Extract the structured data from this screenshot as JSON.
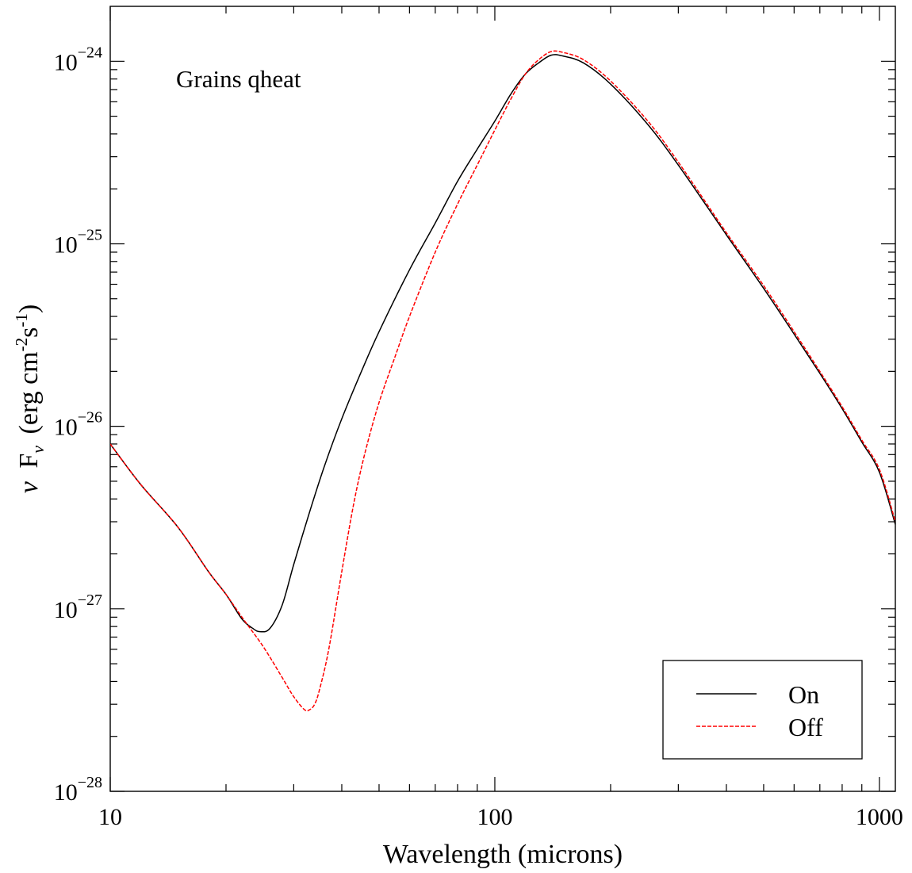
{
  "chart_data": {
    "type": "line",
    "annotation": "Grains qheat",
    "xlabel": "Wavelength (microns)",
    "ylabel": {
      "nu": "ν",
      "F": "F",
      "sub": "ν",
      "open": "(erg cm",
      "exp1": "-2",
      "mid": "s",
      "exp2": "-1",
      "close": ")"
    },
    "x_scale": "log",
    "y_scale": "log",
    "xlim": [
      10,
      1100
    ],
    "ylim": [
      1e-28,
      2e-24
    ],
    "x_ticks": [
      {
        "value": 10,
        "label": "10"
      },
      {
        "value": 100,
        "label": "100"
      },
      {
        "value": 1000,
        "label": "1000"
      }
    ],
    "y_ticks": [
      {
        "value": 1e-28,
        "base": "10",
        "exp": "−28"
      },
      {
        "value": 1e-27,
        "base": "10",
        "exp": "−27"
      },
      {
        "value": 1e-26,
        "base": "10",
        "exp": "−26"
      },
      {
        "value": 1e-25,
        "base": "10",
        "exp": "−25"
      },
      {
        "value": 1e-24,
        "base": "10",
        "exp": "−24"
      }
    ],
    "legend": {
      "position": "bottom-right"
    },
    "series": [
      {
        "name": "On",
        "color": "#000000",
        "dash": "solid",
        "points": [
          [
            10,
            8e-27
          ],
          [
            12,
            4.8e-27
          ],
          [
            15,
            2.8e-27
          ],
          [
            18,
            1.6e-27
          ],
          [
            20,
            1.2e-27
          ],
          [
            22,
            8.8e-28
          ],
          [
            23.5,
            7.8e-28
          ],
          [
            24.5,
            7.5e-28
          ],
          [
            26,
            7.8e-28
          ],
          [
            28,
            1.05e-27
          ],
          [
            30,
            1.75e-27
          ],
          [
            33,
            3.4e-27
          ],
          [
            36,
            6e-27
          ],
          [
            40,
            1.1e-26
          ],
          [
            45,
            2e-26
          ],
          [
            50,
            3.3e-26
          ],
          [
            60,
            7.2e-26
          ],
          [
            70,
            1.3e-25
          ],
          [
            80,
            2.2e-25
          ],
          [
            90,
            3.3e-25
          ],
          [
            100,
            4.7e-25
          ],
          [
            110,
            6.6e-25
          ],
          [
            120,
            8.5e-25
          ],
          [
            130,
            9.8e-25
          ],
          [
            140,
            1.08e-24
          ],
          [
            150,
            1.07e-24
          ],
          [
            170,
            9.8e-25
          ],
          [
            200,
            7.5e-25
          ],
          [
            250,
            4.5e-25
          ],
          [
            300,
            2.7e-25
          ],
          [
            400,
            1.12e-25
          ],
          [
            500,
            5.7e-26
          ],
          [
            600,
            3.2e-26
          ],
          [
            700,
            1.95e-26
          ],
          [
            800,
            1.25e-26
          ],
          [
            900,
            8.2e-27
          ],
          [
            1000,
            5.6e-27
          ],
          [
            1100,
            2.9e-27
          ]
        ]
      },
      {
        "name": "Off",
        "color": "#ff0000",
        "dash": "dashed",
        "points": [
          [
            10,
            8e-27
          ],
          [
            12,
            4.8e-27
          ],
          [
            15,
            2.8e-27
          ],
          [
            18,
            1.6e-27
          ],
          [
            20,
            1.2e-27
          ],
          [
            22,
            9e-28
          ],
          [
            25,
            6.2e-28
          ],
          [
            28,
            4.2e-28
          ],
          [
            30,
            3.3e-28
          ],
          [
            32,
            2.8e-28
          ],
          [
            33,
            2.8e-28
          ],
          [
            34,
            3e-28
          ],
          [
            35,
            3.6e-28
          ],
          [
            37,
            6e-28
          ],
          [
            40,
            1.6e-27
          ],
          [
            43,
            3.8e-27
          ],
          [
            46,
            7.2e-27
          ],
          [
            50,
            1.35e-26
          ],
          [
            55,
            2.4e-26
          ],
          [
            60,
            4e-26
          ],
          [
            70,
            9e-26
          ],
          [
            80,
            1.65e-25
          ],
          [
            90,
            2.7e-25
          ],
          [
            100,
            4.2e-25
          ],
          [
            110,
            6.2e-25
          ],
          [
            120,
            8.5e-25
          ],
          [
            130,
            1.02e-24
          ],
          [
            140,
            1.13e-24
          ],
          [
            150,
            1.12e-24
          ],
          [
            170,
            1.02e-24
          ],
          [
            200,
            7.8e-25
          ],
          [
            250,
            4.7e-25
          ],
          [
            300,
            2.8e-25
          ],
          [
            400,
            1.15e-25
          ],
          [
            500,
            5.9e-26
          ],
          [
            600,
            3.3e-26
          ],
          [
            700,
            2e-26
          ],
          [
            800,
            1.28e-26
          ],
          [
            900,
            8.4e-27
          ],
          [
            1000,
            5.8e-27
          ],
          [
            1100,
            3e-27
          ]
        ]
      }
    ]
  }
}
